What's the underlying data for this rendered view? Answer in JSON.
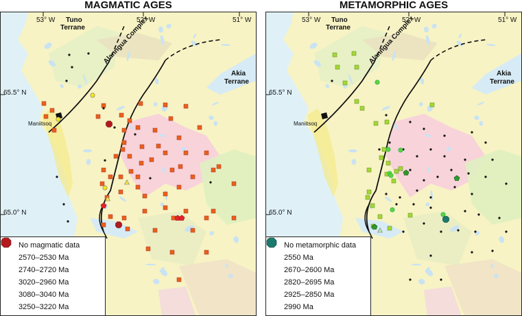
{
  "panels": [
    {
      "title": "MAGMATIC AGES",
      "lon_labels": [
        "53° W",
        "52° W",
        "51° W"
      ],
      "lat_labels": [
        "65.5° N",
        "65.0° N"
      ],
      "regions": {
        "tuno": [
          "Tuno",
          "Terrane"
        ],
        "akia": [
          "Akia",
          "Terrane"
        ],
        "alanngua": "Alanngua Complex",
        "town": "Maniitsoq"
      },
      "legend": [
        {
          "symbol": "dot-icon",
          "color": "#111111",
          "label": "No magmatic data"
        },
        {
          "symbol": "triangle-icon",
          "color": "#f5e24a",
          "label": "2570–2530 Ma"
        },
        {
          "symbol": "circle-icon",
          "color": "#f6e31c",
          "label": "2740–2720 Ma"
        },
        {
          "symbol": "square-icon",
          "color": "#e8611a",
          "label": "3020–2960 Ma"
        },
        {
          "symbol": "pentagon-icon",
          "color": "#e2242a",
          "label": "3080–3040 Ma"
        },
        {
          "symbol": "octagon-icon",
          "color": "#b21a1f",
          "label": "3250–3220 Ma"
        }
      ]
    },
    {
      "title": "METAMORPHIC AGES",
      "lon_labels": [
        "53° W",
        "52° W",
        "51° W"
      ],
      "lat_labels": [
        "65.5° N",
        "65.0° N"
      ],
      "regions": {
        "tuno": [
          "Tuno",
          "Terrane"
        ],
        "akia": [
          "Akia",
          "Terrane"
        ],
        "alanngua": "Alanngua Complex",
        "town": "Maniitsoq"
      },
      "legend": [
        {
          "symbol": "dot-icon",
          "color": "#111111",
          "label": "No metamorphic data"
        },
        {
          "symbol": "triangle-icon",
          "color": "#b9e6b0",
          "label": "2550 Ma"
        },
        {
          "symbol": "circle-icon",
          "color": "#5ed43a",
          "label": "2670–2600 Ma"
        },
        {
          "symbol": "square-icon",
          "color": "#a6d637",
          "label": "2820–2695 Ma"
        },
        {
          "symbol": "pentagon-icon",
          "color": "#2f9a2a",
          "label": "2925–2850 Ma"
        },
        {
          "symbol": "octagon-icon",
          "color": "#1b7a6e",
          "label": "2990 Ma"
        }
      ]
    }
  ]
}
